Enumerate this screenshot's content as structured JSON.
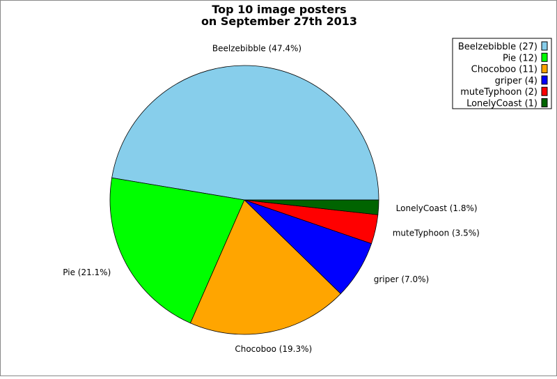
{
  "chart_data": {
    "type": "pie",
    "title_lines": [
      "Top 10 image posters",
      "on September 27th 2013"
    ],
    "slices": [
      {
        "name": "Beelzebibble",
        "value": 27,
        "percent": 47.4,
        "color": "#87ceeb",
        "label": "Beelzebibble (47.4%)",
        "legend": "Beelzebibble (27)"
      },
      {
        "name": "Pie",
        "value": 12,
        "percent": 21.1,
        "color": "#00ff00",
        "label": "Pie (21.1%)",
        "legend": "Pie (12)"
      },
      {
        "name": "Chocoboo",
        "value": 11,
        "percent": 19.3,
        "color": "#ffa500",
        "label": "Chocoboo (19.3%)",
        "legend": "Chocoboo (11)"
      },
      {
        "name": "griper",
        "value": 4,
        "percent": 7.0,
        "color": "#0000ff",
        "label": "griper (7.0%)",
        "legend": "griper (4)"
      },
      {
        "name": "muteTyphoon",
        "value": 2,
        "percent": 3.5,
        "color": "#ff0000",
        "label": "muteTyphoon (3.5%)",
        "legend": "muteTyphoon (2)"
      },
      {
        "name": "LonelyCoast",
        "value": 1,
        "percent": 1.8,
        "color": "#006400",
        "label": "LonelyCoast (1.8%)",
        "legend": "LonelyCoast (1)"
      }
    ],
    "start_angle_deg": 0,
    "direction": "counterclockwise",
    "legend_placement": "top-right"
  }
}
